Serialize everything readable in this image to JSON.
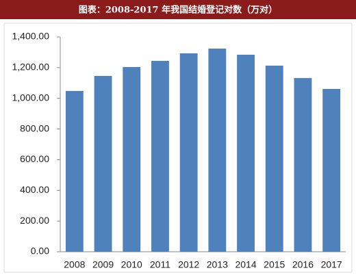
{
  "chart_data": {
    "type": "bar",
    "title": "图表：2008-2017 年我国结婚登记对数（万对）",
    "categories": [
      "2008",
      "2009",
      "2010",
      "2011",
      "2012",
      "2013",
      "2014",
      "2015",
      "2016",
      "2017"
    ],
    "values": [
      1048,
      1146,
      1204,
      1244,
      1293,
      1324,
      1284,
      1213,
      1132,
      1061
    ],
    "color": "#4f81bd",
    "ylim": [
      0,
      1400
    ],
    "yticks": [
      {
        "value": 0,
        "label": "0.00"
      },
      {
        "value": 200,
        "label": "200.00"
      },
      {
        "value": 400,
        "label": "400.00"
      },
      {
        "value": 600,
        "label": "600.00"
      },
      {
        "value": 800,
        "label": "800.00"
      },
      {
        "value": 1000,
        "label": "1,000.00"
      },
      {
        "value": 1200,
        "label": "1,200.00"
      },
      {
        "value": 1400,
        "label": "1,400.00"
      }
    ],
    "grid": false
  }
}
